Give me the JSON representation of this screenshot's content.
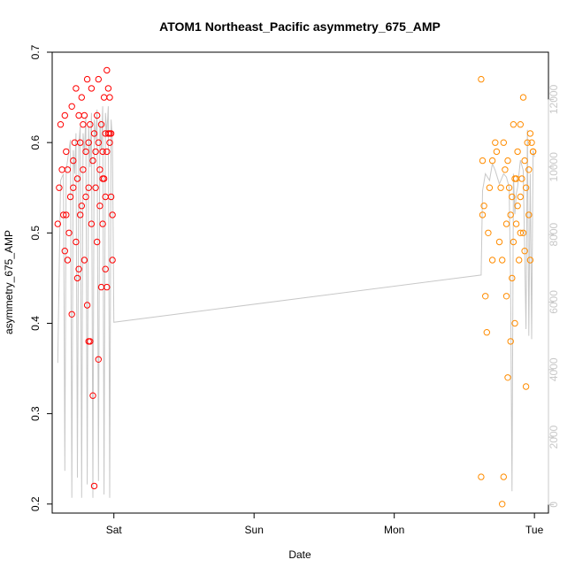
{
  "chart_data": {
    "type": "scatter",
    "title": "ATOM1 Northeast_Pacific asymmetry_675_AMP",
    "xlabel": "Date",
    "ylabel": "asymmetry_675_AMP",
    "x_unit": "days",
    "xlim": [
      -0.44,
      3.1
    ],
    "ylim": [
      0.19,
      0.7
    ],
    "x_ticks": [
      {
        "value": 0,
        "label": "Sat"
      },
      {
        "value": 1,
        "label": "Sun"
      },
      {
        "value": 2,
        "label": "Mon"
      },
      {
        "value": 3,
        "label": "Tue"
      }
    ],
    "y_ticks": [
      0.2,
      0.3,
      0.4,
      0.5,
      0.6,
      0.7
    ],
    "y2_ticks": [
      0,
      2000,
      4000,
      6000,
      8000,
      10000,
      12000
    ],
    "y2lim": [
      -250,
      13400
    ],
    "grid": false,
    "legend": "none",
    "colors": {
      "series1": "#ff0000",
      "series2": "#ff8c00",
      "line": "#c8c8c8"
    },
    "series": [
      {
        "points": [
          [
            -0.4,
            0.51
          ],
          [
            -0.39,
            0.55
          ],
          [
            -0.38,
            0.62
          ],
          [
            -0.37,
            0.57
          ],
          [
            -0.36,
            0.52
          ],
          [
            -0.35,
            0.63
          ],
          [
            -0.35,
            0.48
          ],
          [
            -0.34,
            0.59
          ],
          [
            -0.33,
            0.57
          ],
          [
            -0.33,
            0.47
          ],
          [
            -0.32,
            0.5
          ],
          [
            -0.31,
            0.54
          ],
          [
            -0.3,
            0.64
          ],
          [
            -0.3,
            0.41
          ],
          [
            -0.29,
            0.58
          ],
          [
            -0.28,
            0.6
          ],
          [
            -0.27,
            0.49
          ],
          [
            -0.27,
            0.66
          ],
          [
            -0.26,
            0.56
          ],
          [
            -0.25,
            0.63
          ],
          [
            -0.25,
            0.46
          ],
          [
            -0.24,
            0.6
          ],
          [
            -0.23,
            0.53
          ],
          [
            -0.23,
            0.65
          ],
          [
            -0.22,
            0.57
          ],
          [
            -0.21,
            0.47
          ],
          [
            -0.21,
            0.63
          ],
          [
            -0.2,
            0.59
          ],
          [
            -0.19,
            0.42
          ],
          [
            -0.19,
            0.67
          ],
          [
            -0.18,
            0.55
          ],
          [
            -0.18,
            0.38
          ],
          [
            -0.17,
            0.62
          ],
          [
            -0.16,
            0.51
          ],
          [
            -0.16,
            0.66
          ],
          [
            -0.15,
            0.58
          ],
          [
            -0.15,
            0.32
          ],
          [
            -0.14,
            0.61
          ],
          [
            -0.14,
            0.22
          ],
          [
            -0.13,
            0.55
          ],
          [
            -0.12,
            0.63
          ],
          [
            -0.12,
            0.49
          ],
          [
            -0.11,
            0.36
          ],
          [
            -0.11,
            0.67
          ],
          [
            -0.1,
            0.57
          ],
          [
            -0.1,
            0.53
          ],
          [
            -0.09,
            0.62
          ],
          [
            -0.09,
            0.44
          ],
          [
            -0.08,
            0.59
          ],
          [
            -0.08,
            0.51
          ],
          [
            -0.07,
            0.65
          ],
          [
            -0.07,
            0.56
          ],
          [
            -0.06,
            0.61
          ],
          [
            -0.06,
            0.46
          ],
          [
            -0.05,
            0.68
          ],
          [
            -0.05,
            0.59
          ],
          [
            -0.04,
            0.61
          ],
          [
            -0.04,
            0.66
          ],
          [
            -0.03,
            0.65
          ],
          [
            -0.03,
            0.6
          ],
          [
            -0.02,
            0.54
          ],
          [
            -0.02,
            0.61
          ],
          [
            -0.01,
            0.52
          ],
          [
            -0.01,
            0.47
          ],
          [
            -0.34,
            0.52
          ],
          [
            -0.29,
            0.55
          ],
          [
            -0.24,
            0.52
          ],
          [
            -0.2,
            0.54
          ],
          [
            -0.17,
            0.38
          ],
          [
            -0.13,
            0.59
          ],
          [
            -0.11,
            0.6
          ],
          [
            -0.08,
            0.56
          ],
          [
            -0.06,
            0.54
          ],
          [
            -0.05,
            0.44
          ],
          [
            -0.03,
            0.61
          ],
          [
            -0.26,
            0.45
          ],
          [
            -0.22,
            0.62
          ],
          [
            -0.18,
            0.6
          ]
        ]
      },
      {
        "points": [
          [
            2.62,
            0.67
          ],
          [
            2.63,
            0.58
          ],
          [
            2.63,
            0.52
          ],
          [
            2.64,
            0.53
          ],
          [
            2.65,
            0.43
          ],
          [
            2.66,
            0.39
          ],
          [
            2.67,
            0.5
          ],
          [
            2.68,
            0.55
          ],
          [
            2.7,
            0.47
          ],
          [
            2.7,
            0.58
          ],
          [
            2.72,
            0.6
          ],
          [
            2.73,
            0.59
          ],
          [
            2.75,
            0.49
          ],
          [
            2.76,
            0.55
          ],
          [
            2.77,
            0.47
          ],
          [
            2.78,
            0.6
          ],
          [
            2.79,
            0.57
          ],
          [
            2.8,
            0.51
          ],
          [
            2.8,
            0.43
          ],
          [
            2.81,
            0.58
          ],
          [
            2.82,
            0.55
          ],
          [
            2.83,
            0.38
          ],
          [
            2.83,
            0.52
          ],
          [
            2.84,
            0.54
          ],
          [
            2.84,
            0.45
          ],
          [
            2.85,
            0.62
          ],
          [
            2.85,
            0.49
          ],
          [
            2.86,
            0.4
          ],
          [
            2.86,
            0.56
          ],
          [
            2.87,
            0.51
          ],
          [
            2.88,
            0.59
          ],
          [
            2.88,
            0.53
          ],
          [
            2.89,
            0.47
          ],
          [
            2.9,
            0.62
          ],
          [
            2.9,
            0.54
          ],
          [
            2.91,
            0.56
          ],
          [
            2.92,
            0.5
          ],
          [
            2.92,
            0.65
          ],
          [
            2.93,
            0.58
          ],
          [
            2.94,
            0.33
          ],
          [
            2.94,
            0.55
          ],
          [
            2.95,
            0.6
          ],
          [
            2.96,
            0.52
          ],
          [
            2.97,
            0.47
          ],
          [
            2.98,
            0.6
          ],
          [
            2.99,
            0.59
          ],
          [
            2.62,
            0.23
          ],
          [
            2.78,
            0.23
          ],
          [
            2.77,
            0.2
          ],
          [
            2.81,
            0.34
          ],
          [
            2.87,
            0.56
          ],
          [
            2.9,
            0.5
          ],
          [
            2.93,
            0.48
          ],
          [
            2.96,
            0.57
          ],
          [
            2.97,
            0.61
          ],
          [
            2.99,
            0.59
          ]
        ]
      }
    ],
    "line_series": [
      [
        -0.4,
        4200
      ],
      [
        -0.38,
        9600
      ],
      [
        -0.36,
        9800
      ],
      [
        -0.35,
        1000
      ],
      [
        -0.34,
        9900
      ],
      [
        -0.33,
        10200
      ],
      [
        -0.31,
        10800
      ],
      [
        -0.3,
        200
      ],
      [
        -0.29,
        10500
      ],
      [
        -0.28,
        9800
      ],
      [
        -0.27,
        11000
      ],
      [
        -0.26,
        800
      ],
      [
        -0.25,
        10700
      ],
      [
        -0.24,
        11200
      ],
      [
        -0.23,
        200
      ],
      [
        -0.22,
        11000
      ],
      [
        -0.21,
        10400
      ],
      [
        -0.2,
        11500
      ],
      [
        -0.19,
        600
      ],
      [
        -0.18,
        11200
      ],
      [
        -0.17,
        10000
      ],
      [
        -0.16,
        11600
      ],
      [
        -0.15,
        200
      ],
      [
        -0.14,
        11400
      ],
      [
        -0.13,
        10800
      ],
      [
        -0.12,
        11700
      ],
      [
        -0.11,
        700
      ],
      [
        -0.1,
        11400
      ],
      [
        -0.09,
        10500
      ],
      [
        -0.08,
        11800
      ],
      [
        -0.07,
        300
      ],
      [
        -0.06,
        11600
      ],
      [
        -0.05,
        11000
      ],
      [
        -0.04,
        11800
      ],
      [
        -0.03,
        200
      ],
      [
        -0.02,
        11400
      ],
      [
        -0.01,
        10800
      ],
      [
        0.0,
        5400
      ],
      [
        2.62,
        6800
      ],
      [
        2.63,
        9300
      ],
      [
        2.65,
        9800
      ],
      [
        2.68,
        9600
      ],
      [
        2.7,
        10100
      ],
      [
        2.72,
        9900
      ],
      [
        2.75,
        9500
      ],
      [
        2.78,
        9800
      ],
      [
        2.8,
        9700
      ],
      [
        2.82,
        9400
      ],
      [
        2.83,
        6500
      ],
      [
        2.84,
        400
      ],
      [
        2.85,
        9800
      ],
      [
        2.86,
        8600
      ],
      [
        2.87,
        9200
      ],
      [
        2.88,
        9400
      ],
      [
        2.9,
        10200
      ],
      [
        2.92,
        9900
      ],
      [
        2.94,
        5200
      ],
      [
        2.95,
        11100
      ],
      [
        2.96,
        5000
      ],
      [
        2.97,
        9800
      ],
      [
        2.98,
        4900
      ],
      [
        2.99,
        10500
      ],
      [
        3.0,
        10300
      ]
    ]
  }
}
